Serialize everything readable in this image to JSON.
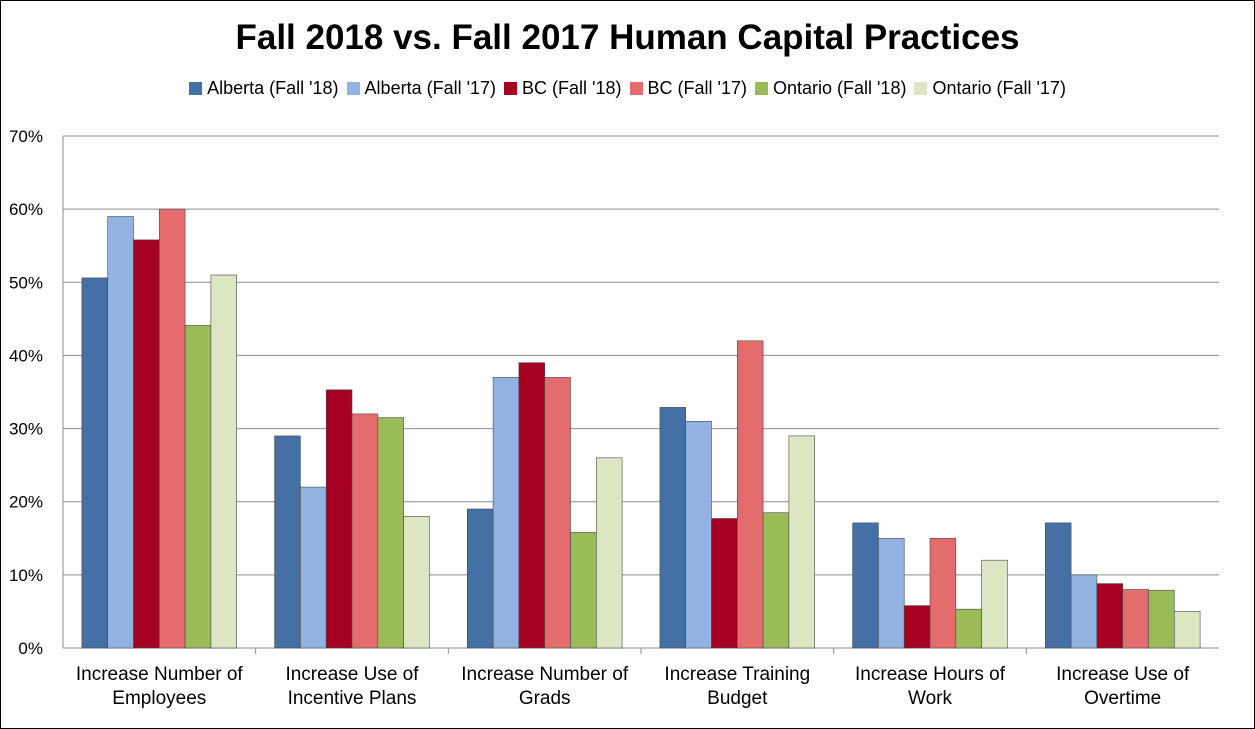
{
  "chart_data": {
    "type": "bar",
    "title": "Fall 2018 vs. Fall 2017 Human Capital Practices",
    "xlabel": "",
    "ylabel": "",
    "ylim": [
      0,
      70
    ],
    "y_ticks": [
      "0%",
      "10%",
      "20%",
      "30%",
      "40%",
      "50%",
      "60%",
      "70%"
    ],
    "grid": true,
    "legend_position": "top",
    "categories": [
      [
        "Increase Number of",
        "Employees"
      ],
      [
        "Increase Use of",
        "Incentive Plans"
      ],
      [
        "Increase Number of",
        "Grads"
      ],
      [
        "Increase Training",
        "Budget"
      ],
      [
        "Increase Hours of",
        "Work"
      ],
      [
        "Increase Use of",
        "Overtime"
      ]
    ],
    "series": [
      {
        "name": "Alberta (Fall '18)",
        "color": "#4470A6",
        "values": [
          50.6,
          29.0,
          19.0,
          32.9,
          17.1,
          17.1
        ]
      },
      {
        "name": "Alberta (Fall '17)",
        "color": "#92B3E2",
        "values": [
          59.0,
          22.0,
          37.0,
          31.0,
          15.0,
          10.0
        ]
      },
      {
        "name": "BC (Fall '18)",
        "color": "#A50021",
        "values": [
          55.8,
          35.3,
          39.0,
          17.7,
          5.8,
          8.8
        ]
      },
      {
        "name": "BC (Fall '17)",
        "color": "#E46C6C",
        "values": [
          60.0,
          32.0,
          37.0,
          42.0,
          15.0,
          8.0
        ]
      },
      {
        "name": "Ontario (Fall '18)",
        "color": "#9BBB59",
        "values": [
          44.1,
          31.5,
          15.8,
          18.5,
          5.3,
          7.9
        ]
      },
      {
        "name": "Ontario (Fall '17)",
        "color": "#DDE6C3",
        "values": [
          51.0,
          18.0,
          26.0,
          29.0,
          12.0,
          5.0
        ]
      }
    ]
  }
}
